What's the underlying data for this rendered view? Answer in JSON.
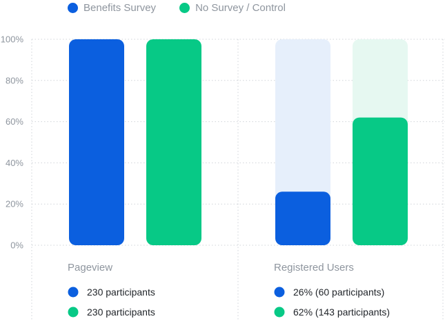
{
  "colors": {
    "benefits": "#0b5fdf",
    "benefits_track": "#e6effb",
    "control": "#07c986",
    "control_track": "#e6f8f1",
    "grid": "#cfd3d8",
    "axis_text": "#8e959e",
    "text": "#1f2328"
  },
  "legend": [
    {
      "label": "Benefits Survey",
      "color": "#0b5fdf"
    },
    {
      "label": "No Survey / Control",
      "color": "#07c986"
    }
  ],
  "chart_data": {
    "type": "bar",
    "categories": [
      "Pageview",
      "Registered Users"
    ],
    "series": [
      {
        "name": "Benefits Survey",
        "values": [
          100,
          26
        ]
      },
      {
        "name": "No Survey / Control",
        "values": [
          100,
          62
        ]
      }
    ],
    "ylim": [
      0,
      100
    ],
    "yticks": [
      0,
      20,
      40,
      60,
      80,
      100
    ],
    "ytick_labels": [
      "0%",
      "20%",
      "40%",
      "60%",
      "80%",
      "100%"
    ],
    "grid": true,
    "legend_position": "top-left",
    "annotations": [
      [
        "230 participants",
        "230 participants"
      ],
      [
        "26% (60 participants)",
        "62% (143 participants)"
      ]
    ]
  }
}
